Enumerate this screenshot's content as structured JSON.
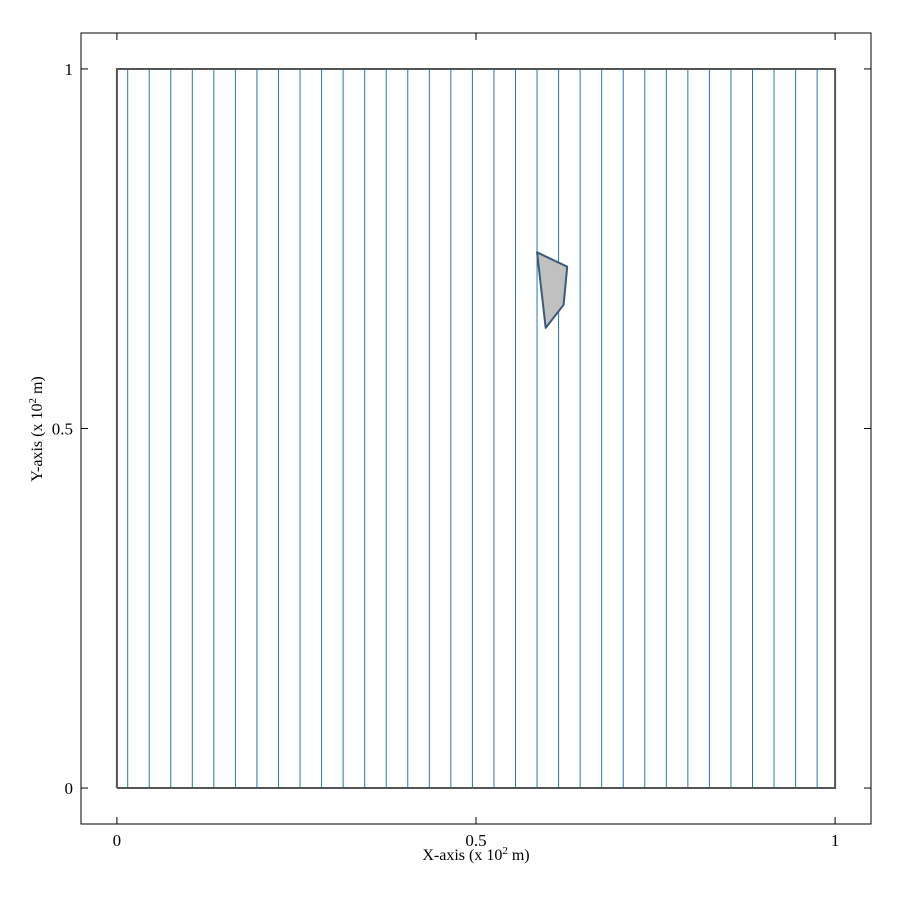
{
  "chart_data": {
    "type": "line",
    "title": "",
    "xlabel": "X-axis (x 10",
    "xlabel_exp": "2",
    "xlabel_unit": " m)",
    "ylabel": "Y-axis (x 10",
    "ylabel_exp": "2",
    "ylabel_unit": " m)",
    "xlim": [
      -0.05,
      1.05
    ],
    "ylim": [
      -0.05,
      1.05
    ],
    "xticks": [
      0,
      0.5,
      1
    ],
    "xtick_labels": [
      "0",
      "0.5",
      "1"
    ],
    "yticks": [
      0,
      0.5,
      1
    ],
    "ytick_labels": [
      "0",
      "0.5",
      "1"
    ],
    "grid": false,
    "domain_boundary": [
      [
        0,
        0
      ],
      [
        1,
        0
      ],
      [
        1,
        1
      ],
      [
        0,
        1
      ],
      [
        0,
        0
      ]
    ],
    "vertical_lines_x": [
      0.015,
      0.045,
      0.075,
      0.105,
      0.135,
      0.165,
      0.195,
      0.225,
      0.255,
      0.285,
      0.315,
      0.345,
      0.375,
      0.405,
      0.435,
      0.465,
      0.495,
      0.525,
      0.555,
      0.585,
      0.615,
      0.645,
      0.675,
      0.705,
      0.735,
      0.765,
      0.795,
      0.825,
      0.855,
      0.885,
      0.915,
      0.945,
      0.975
    ],
    "obstacle_polygon": [
      [
        0.585,
        0.745
      ],
      [
        0.627,
        0.725
      ],
      [
        0.622,
        0.672
      ],
      [
        0.597,
        0.64
      ],
      [
        0.585,
        0.745
      ]
    ],
    "colors": {
      "line": "#1f77b4",
      "boundary": "#555555",
      "obstacle_fill": "#c0c0c0",
      "obstacle_edge": "#3a5a78",
      "frame": "#000000"
    }
  }
}
